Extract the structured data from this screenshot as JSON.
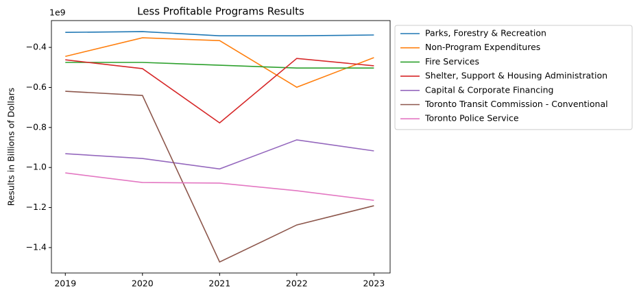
{
  "chart_data": {
    "type": "line",
    "title": "Less Profitable Programs Results",
    "ylabel": "Results in Billions of Dollars",
    "y_offset_label": "1e9",
    "x": [
      2019,
      2020,
      2021,
      2022,
      2023
    ],
    "xlim": [
      2018.82,
      2023.21
    ],
    "xticks": [
      2019,
      2020,
      2021,
      2022,
      2023
    ],
    "ylim": [
      -1.527,
      -0.266
    ],
    "yticks": [
      {
        "value": -1.4,
        "label": "−1.4"
      },
      {
        "value": -1.2,
        "label": "−1.2"
      },
      {
        "value": -1.0,
        "label": "−1.0"
      },
      {
        "value": -0.8,
        "label": "−0.8"
      },
      {
        "value": -0.6,
        "label": "−0.6"
      },
      {
        "value": -0.4,
        "label": "−0.4"
      }
    ],
    "grid": false,
    "legend": "outside right",
    "series": [
      {
        "name": "Parks, Forestry & Recreation",
        "color": "#1f77b4",
        "values": [
          -0.325,
          -0.321,
          -0.342,
          -0.342,
          -0.338
        ]
      },
      {
        "name": "Non-Program Expenditures",
        "color": "#ff7f0e",
        "values": [
          -0.445,
          -0.352,
          -0.366,
          -0.599,
          -0.451
        ]
      },
      {
        "name": "Fire Services",
        "color": "#2ca02c",
        "values": [
          -0.475,
          -0.475,
          -0.489,
          -0.503,
          -0.503
        ]
      },
      {
        "name": "Shelter, Support & Housing Administration",
        "color": "#d62728",
        "values": [
          -0.462,
          -0.506,
          -0.777,
          -0.455,
          -0.492
        ]
      },
      {
        "name": "Capital & Corporate Financing",
        "color": "#9467bd",
        "values": [
          -0.931,
          -0.955,
          -1.007,
          -0.862,
          -0.917
        ]
      },
      {
        "name": "Toronto Transit Commission - Conventional",
        "color": "#8c564b",
        "values": [
          -0.619,
          -0.64,
          -1.472,
          -1.287,
          -1.191
        ]
      },
      {
        "name": "Toronto Police Service",
        "color": "#e377c2",
        "values": [
          -1.027,
          -1.075,
          -1.078,
          -1.116,
          -1.164
        ]
      }
    ]
  }
}
